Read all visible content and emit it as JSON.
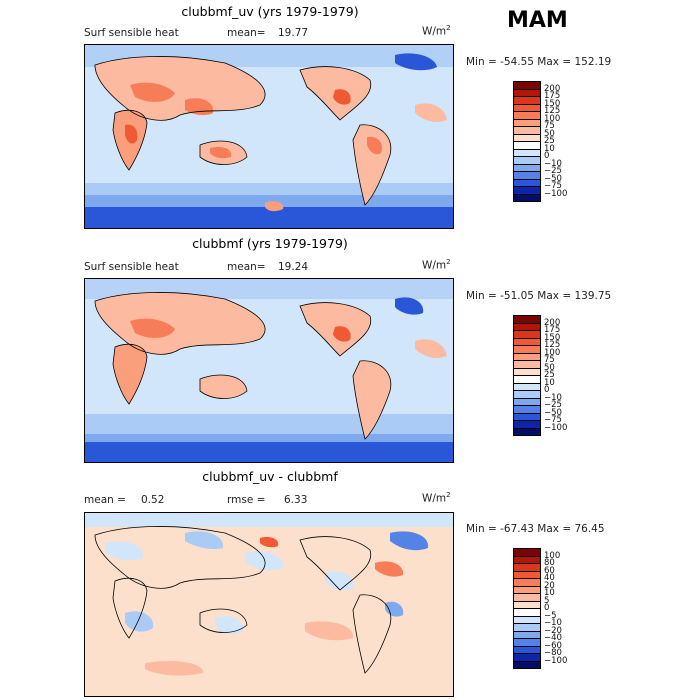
{
  "season": "MAM",
  "chart_data": [
    {
      "type": "heatmap",
      "title": "clubbmf_uv (yrs 1979-1979)",
      "subtitle_left": "Surf sensible heat",
      "stat1_label": "mean=",
      "stat1_value": "19.77",
      "units": "W/m",
      "units_exp": "2",
      "minmax": "Min = -54.55 Max = 152.19",
      "levels": [
        "200",
        "175",
        "150",
        "125",
        "100",
        "75",
        "50",
        "25",
        "10",
        "0",
        "−10",
        "−25",
        "−50",
        "−75",
        "−100"
      ],
      "colors": [
        "#7a0403",
        "#b2160b",
        "#d9361d",
        "#ef5a35",
        "#f77d58",
        "#fb9e7c",
        "#fcbba1",
        "#fde0cc",
        "#ffffff",
        "#d2e6fb",
        "#a9cbf5",
        "#7fa9ee",
        "#5383e6",
        "#2a56d8",
        "#0b27a8",
        "#030d6a"
      ]
    },
    {
      "type": "heatmap",
      "title": "clubbmf (yrs 1979-1979)",
      "subtitle_left": "Surf sensible heat",
      "stat1_label": "mean=",
      "stat1_value": "19.24",
      "units": "W/m",
      "units_exp": "2",
      "minmax": "Min = -51.05 Max = 139.75",
      "levels": [
        "200",
        "175",
        "150",
        "125",
        "100",
        "75",
        "50",
        "25",
        "10",
        "0",
        "−10",
        "−25",
        "−50",
        "−75",
        "−100"
      ],
      "colors": [
        "#7a0403",
        "#b2160b",
        "#d9361d",
        "#ef5a35",
        "#f77d58",
        "#fb9e7c",
        "#fcbba1",
        "#fde0cc",
        "#ffffff",
        "#d2e6fb",
        "#a9cbf5",
        "#7fa9ee",
        "#5383e6",
        "#2a56d8",
        "#0b27a8",
        "#030d6a"
      ]
    },
    {
      "type": "heatmap",
      "title": "clubbmf_uv - clubbmf",
      "stat1_label": "mean =",
      "stat1_value": "0.52",
      "stat2_label": "rmse =",
      "stat2_value": "6.33",
      "units": "W/m",
      "units_exp": "2",
      "minmax": "Min = -67.43 Max =  76.45",
      "levels": [
        "100",
        "80",
        "60",
        "40",
        "20",
        "10",
        "5",
        "0",
        "−5",
        "−10",
        "−20",
        "−40",
        "−60",
        "−80",
        "−100"
      ],
      "colors": [
        "#7a0403",
        "#b2160b",
        "#d9361d",
        "#ef5a35",
        "#f77d58",
        "#fb9e7c",
        "#fcbba1",
        "#fde0cc",
        "#ffffff",
        "#d2e6fb",
        "#a9cbf5",
        "#7fa9ee",
        "#5383e6",
        "#2a56d8",
        "#0b27a8",
        "#030d6a"
      ]
    }
  ]
}
